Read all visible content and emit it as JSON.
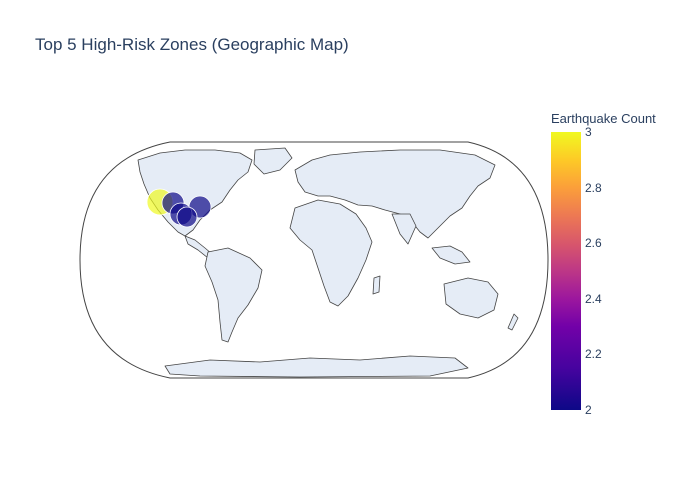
{
  "title": "Top 5 High-Risk Zones (Geographic Map)",
  "colors": {
    "land": "#e5ecf6",
    "coast": "#444444",
    "text": "#2a3f5f",
    "marker_high": "#f0f921",
    "marker_low": "#0d0887"
  },
  "colorbar": {
    "title": "Earthquake Count",
    "ticks": [
      "3",
      "2.8",
      "2.6",
      "2.4",
      "2.2",
      "2"
    ],
    "min": 2,
    "max": 3,
    "colorscale": "plasma"
  },
  "zones": [
    {
      "count": 3,
      "color": "#f0f921"
    },
    {
      "count": 2,
      "color": "#0d0887"
    },
    {
      "count": 2,
      "color": "#0d0887"
    },
    {
      "count": 2,
      "color": "#0d0887"
    },
    {
      "count": 2,
      "color": "#0d0887"
    }
  ]
}
